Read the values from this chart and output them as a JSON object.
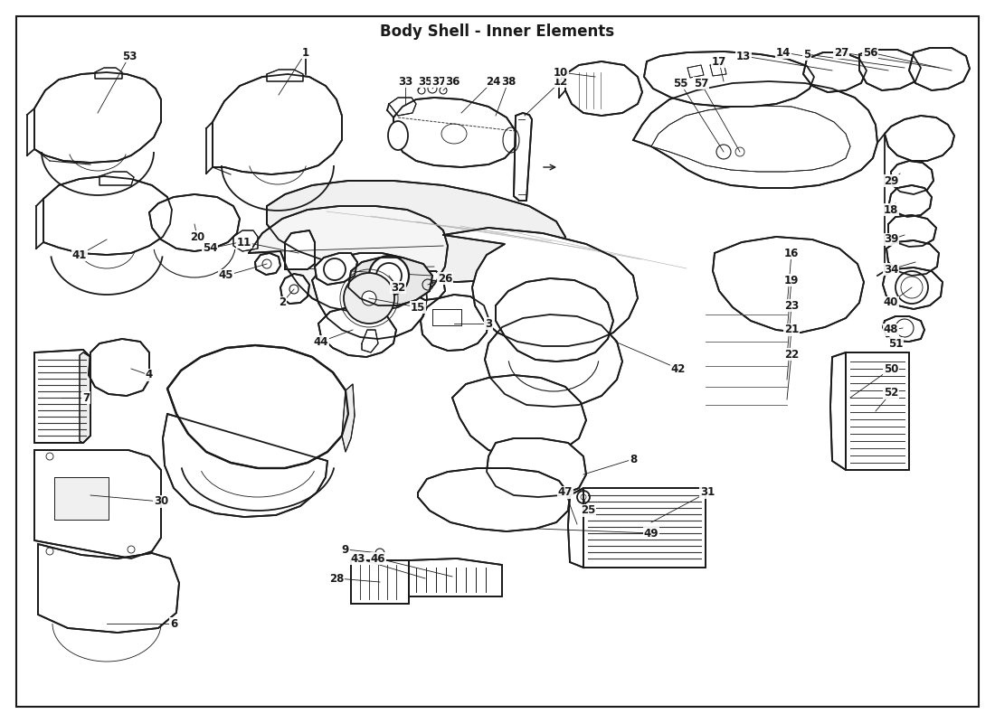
{
  "title": "Body Shell - Inner Elements",
  "background_color": "#ffffff",
  "line_color": "#1a1a1a",
  "label_fontsize": 8.5,
  "title_fontsize": 12,
  "border_color": "#1a1a1a",
  "lw_main": 1.3,
  "lw_thin": 0.8,
  "lw_inner": 0.6
}
